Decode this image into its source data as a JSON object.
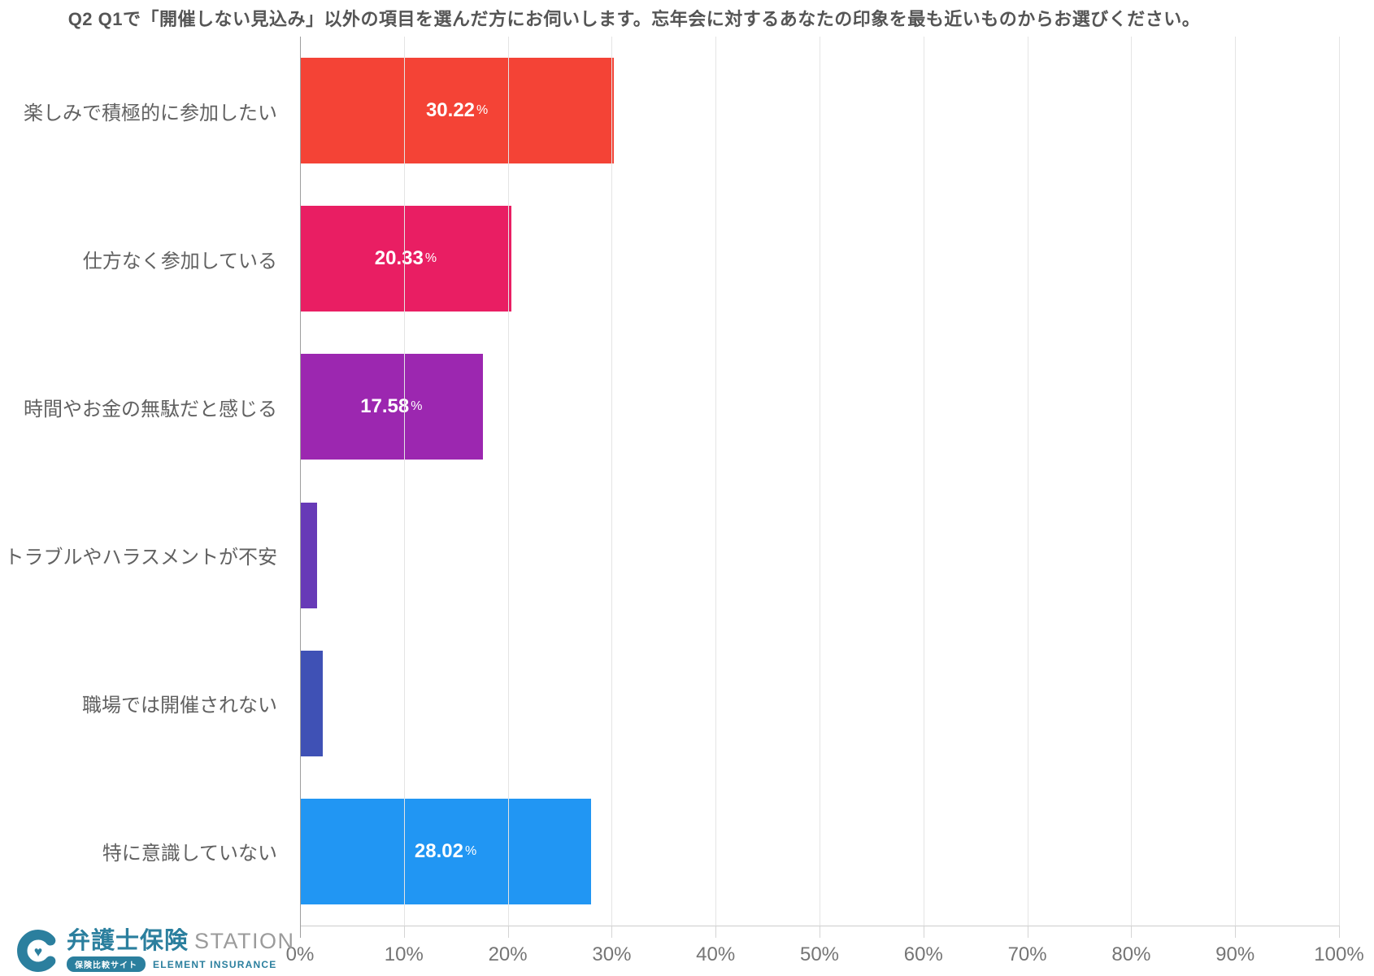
{
  "chart_data": {
    "type": "bar",
    "orientation": "horizontal",
    "title": "Q2 Q1で「開催しない見込み」以外の項目を選んだ方にお伺いします。忘年会に対するあなたの印象を最も近いものからお選びください。",
    "categories": [
      "楽しみで積極的に参加したい",
      "仕方なく参加している",
      "時間やお金の無駄だと感じる",
      "トラブルやハラスメントが不安",
      "職場では開催されない",
      "特に意識していない"
    ],
    "values": [
      30.22,
      20.33,
      17.58,
      1.65,
      2.2,
      28.02
    ],
    "value_labels": [
      "30.22",
      "20.33",
      "17.58",
      "",
      "",
      "28.02"
    ],
    "unit": "%",
    "bar_colors": [
      "#f44336",
      "#e91e63",
      "#9c27b0",
      "#673ab7",
      "#3f51b5",
      "#2196f3"
    ],
    "xlim": [
      0,
      100
    ],
    "x_ticks": [
      "0%",
      "10%",
      "20%",
      "30%",
      "40%",
      "50%",
      "60%",
      "70%",
      "80%",
      "90%",
      "100%"
    ],
    "grid": true,
    "legend": "none"
  },
  "logo": {
    "brand_jp": "弁護士保険",
    "brand_en": "STATION",
    "badge": "保険比較サイト",
    "tagline": "ELEMENT INSURANCE",
    "brand_color": "#2b7f9e"
  }
}
